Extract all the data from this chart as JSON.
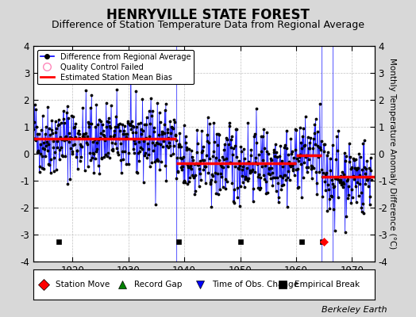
{
  "title": "HENRYVILLE STATE FOREST",
  "subtitle": "Difference of Station Temperature Data from Regional Average",
  "ylabel": "Monthly Temperature Anomaly Difference (°C)",
  "xlabel_years": [
    1920,
    1930,
    1940,
    1950,
    1960,
    1970
  ],
  "xlim": [
    1913,
    1974
  ],
  "ylim": [
    -4,
    4
  ],
  "background_color": "#d8d8d8",
  "plot_bg_color": "#ffffff",
  "grid_color": "#bbbbbb",
  "title_fontsize": 12,
  "subtitle_fontsize": 9,
  "ylabel_fontsize": 7.5,
  "tick_fontsize": 8.5,
  "watermark": "Berkeley Earth",
  "segment_biases": [
    {
      "start": 1913.0,
      "end": 1938.5,
      "bias": 0.55
    },
    {
      "start": 1938.5,
      "end": 1960.0,
      "bias": -0.35
    },
    {
      "start": 1960.0,
      "end": 1964.5,
      "bias": -0.05
    },
    {
      "start": 1964.5,
      "end": 1966.5,
      "bias": -0.85
    },
    {
      "start": 1966.5,
      "end": 1974.0,
      "bias": -0.85
    }
  ],
  "empirical_breaks": [
    1917.5,
    1939.0,
    1950.0,
    1961.0,
    1964.7
  ],
  "station_moves": [
    1964.9
  ],
  "vertical_lines": [
    1938.5,
    1964.5,
    1966.5
  ],
  "seed": 42
}
